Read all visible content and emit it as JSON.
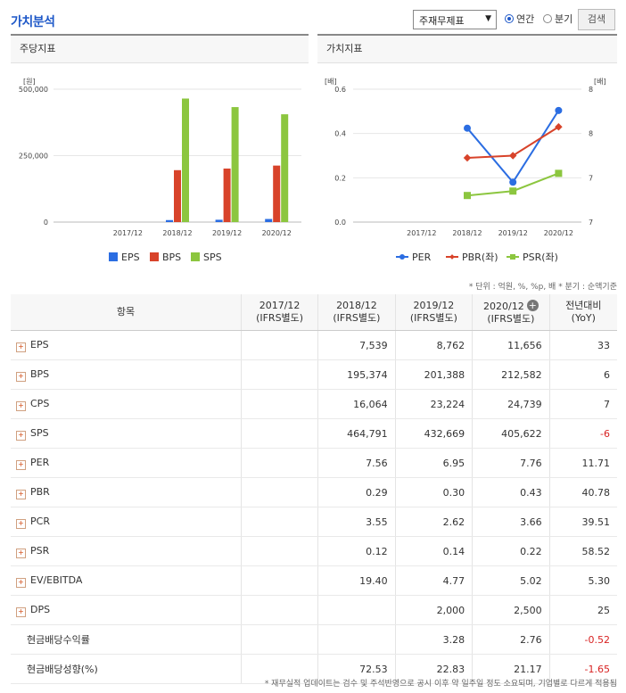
{
  "header": {
    "title": "가치분석",
    "select_value": "주재무제표",
    "radio_annual": "연간",
    "radio_quarter": "분기",
    "search_button": "검색"
  },
  "panels": {
    "left_title": "주당지표",
    "right_title": "가치지표"
  },
  "colors": {
    "eps": "#2b6de2",
    "bps": "#d8432a",
    "sps": "#8cc63f",
    "per": "#2b6de2",
    "pbr": "#d8432a",
    "psr": "#8cc63f"
  },
  "chart_data": [
    {
      "type": "bar",
      "ylabel_unit": "[원]",
      "yticks": [
        "500,000",
        "250,000",
        "0"
      ],
      "ylim": [
        0,
        500000
      ],
      "categories": [
        "2017/12",
        "2018/12",
        "2019/12",
        "2020/12"
      ],
      "series": [
        {
          "name": "EPS",
          "values": [
            null,
            7539,
            8762,
            11656
          ]
        },
        {
          "name": "BPS",
          "values": [
            null,
            195374,
            201388,
            212582
          ]
        },
        {
          "name": "SPS",
          "values": [
            null,
            464791,
            432669,
            405622
          ]
        }
      ],
      "legend": "bottom"
    },
    {
      "type": "line",
      "ylabel_left_unit": "[배]",
      "ylabel_right_unit": "[배]",
      "yticks_left": [
        "0.6",
        "0.4",
        "0.2",
        "0.0"
      ],
      "yticks_right": [
        "8",
        "8",
        "7",
        "7"
      ],
      "ylim_left": [
        0,
        0.6
      ],
      "ylim_right": [
        6.5,
        8.0
      ],
      "categories": [
        "2017/12",
        "2018/12",
        "2019/12",
        "2020/12"
      ],
      "series": [
        {
          "name": "PER",
          "axis": "right",
          "values": [
            null,
            7.56,
            6.95,
            7.76
          ]
        },
        {
          "name": "PBR(좌)",
          "axis": "left",
          "values": [
            null,
            0.29,
            0.3,
            0.43
          ]
        },
        {
          "name": "PSR(좌)",
          "axis": "left",
          "values": [
            null,
            0.12,
            0.14,
            0.22
          ]
        }
      ],
      "legend": "bottom"
    }
  ],
  "unit_note": "* 단위 : 억원, %, %p, 배 * 분기 : 순액기준",
  "table": {
    "headers": [
      "항목",
      "2017/12\n(IFRS별도)",
      "2018/12\n(IFRS별도)",
      "2019/12\n(IFRS별도)",
      "2020/12\n(IFRS별도)",
      "전년대비\n(YoY)"
    ],
    "rows": [
      {
        "name": "EPS",
        "expand": true,
        "v": [
          "",
          "7,539",
          "8,762",
          "11,656",
          "33"
        ],
        "neg": false
      },
      {
        "name": "BPS",
        "expand": true,
        "v": [
          "",
          "195,374",
          "201,388",
          "212,582",
          "6"
        ],
        "neg": false
      },
      {
        "name": "CPS",
        "expand": true,
        "v": [
          "",
          "16,064",
          "23,224",
          "24,739",
          "7"
        ],
        "neg": false
      },
      {
        "name": "SPS",
        "expand": true,
        "v": [
          "",
          "464,791",
          "432,669",
          "405,622",
          "-6"
        ],
        "neg": true
      },
      {
        "name": "PER",
        "expand": true,
        "v": [
          "",
          "7.56",
          "6.95",
          "7.76",
          "11.71"
        ],
        "neg": false
      },
      {
        "name": "PBR",
        "expand": true,
        "v": [
          "",
          "0.29",
          "0.30",
          "0.43",
          "40.78"
        ],
        "neg": false
      },
      {
        "name": "PCR",
        "expand": true,
        "v": [
          "",
          "3.55",
          "2.62",
          "3.66",
          "39.51"
        ],
        "neg": false
      },
      {
        "name": "PSR",
        "expand": true,
        "v": [
          "",
          "0.12",
          "0.14",
          "0.22",
          "58.52"
        ],
        "neg": false
      },
      {
        "name": "EV/EBITDA",
        "expand": true,
        "v": [
          "",
          "19.40",
          "4.77",
          "5.02",
          "5.30"
        ],
        "neg": false
      },
      {
        "name": "DPS",
        "expand": true,
        "v": [
          "",
          "",
          "2,000",
          "2,500",
          "25"
        ],
        "neg": false
      },
      {
        "name": "현금배당수익률",
        "expand": false,
        "v": [
          "",
          "",
          "3.28",
          "2.76",
          "-0.52"
        ],
        "neg": true
      },
      {
        "name": "현금배당성향(%)",
        "expand": false,
        "v": [
          "",
          "72.53",
          "22.83",
          "21.17",
          "-1.65"
        ],
        "neg": true
      }
    ]
  },
  "footnote": "* 재무실적 업데이트는 검수 및 주석반영으로 공시 이후 약 일주일 정도 소요되며, 기업별로 다르게 적용됨"
}
